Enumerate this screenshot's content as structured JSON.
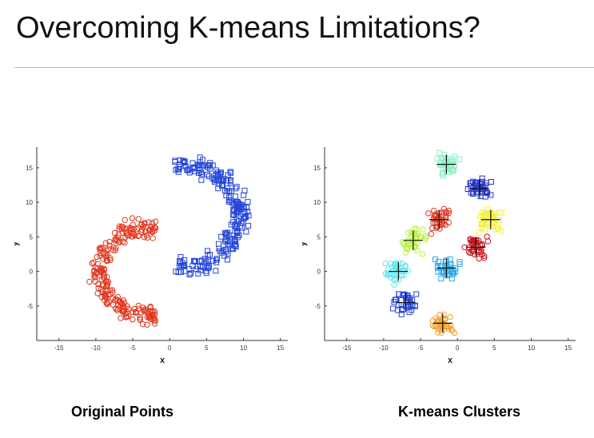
{
  "slide": {
    "title": "Overcoming K-means Limitations?"
  },
  "captions": {
    "left": "Original Points",
    "right": "K-means Clusters"
  },
  "colors": {
    "upper_arc": "#2446d8",
    "lower_arc": "#e0361f",
    "axis": "#333333"
  },
  "chart_data": [
    {
      "type": "scatter",
      "title": "",
      "xlabel": "x",
      "ylabel": "y",
      "xlim": [
        -18,
        16
      ],
      "ylim": [
        -10,
        18
      ],
      "xticks": [
        -15,
        -10,
        -5,
        0,
        5,
        10,
        15
      ],
      "yticks": [
        -5,
        0,
        5,
        10,
        15
      ],
      "series": [
        {
          "marker": "square",
          "color": "#2446d8",
          "shape": {
            "arc": "upper",
            "cx": 2,
            "cy": 8,
            "r": 7.5,
            "from_deg": 100,
            "to_deg": -100,
            "count": 230
          }
        },
        {
          "marker": "circle",
          "color": "#e0361f",
          "shape": {
            "arc": "lower",
            "cx": -3,
            "cy": 0,
            "r": 6.5,
            "from_deg": 80,
            "to_deg": 280,
            "count": 230
          }
        }
      ]
    },
    {
      "type": "scatter",
      "title": "",
      "xlabel": "x",
      "ylabel": "y",
      "xlim": [
        -18,
        16
      ],
      "ylim": [
        -10,
        18
      ],
      "xticks": [
        -15,
        -10,
        -5,
        0,
        5,
        10,
        15
      ],
      "yticks": [
        -5,
        0,
        5,
        10,
        15
      ],
      "clusters": [
        {
          "color": "#8ff0c4",
          "marker": "square",
          "center": [
            -1.5,
            15.5
          ],
          "count": 40
        },
        {
          "color": "#2233c8",
          "marker": "square",
          "center": [
            3,
            12
          ],
          "count": 40
        },
        {
          "color": "#f5f03a",
          "marker": "square",
          "center": [
            4.5,
            7.5
          ],
          "count": 40
        },
        {
          "color": "#c8101b",
          "marker": "circle",
          "center": [
            2.5,
            3.5
          ],
          "count": 40
        },
        {
          "color": "#30a8e8",
          "marker": "square",
          "center": [
            -1.5,
            0.5
          ],
          "count": 40
        },
        {
          "color": "#e0361f",
          "marker": "circle",
          "center": [
            -2.5,
            7.5
          ],
          "count": 40
        },
        {
          "color": "#b8f040",
          "marker": "circle",
          "center": [
            -6,
            4.5
          ],
          "count": 40
        },
        {
          "color": "#5fe6f0",
          "marker": "circle",
          "center": [
            -8,
            0
          ],
          "count": 40
        },
        {
          "color": "#2446d8",
          "marker": "square",
          "center": [
            -7,
            -4.5
          ],
          "count": 40
        },
        {
          "color": "#f0a030",
          "marker": "circle",
          "center": [
            -2,
            -7.5
          ],
          "count": 40
        }
      ]
    }
  ]
}
